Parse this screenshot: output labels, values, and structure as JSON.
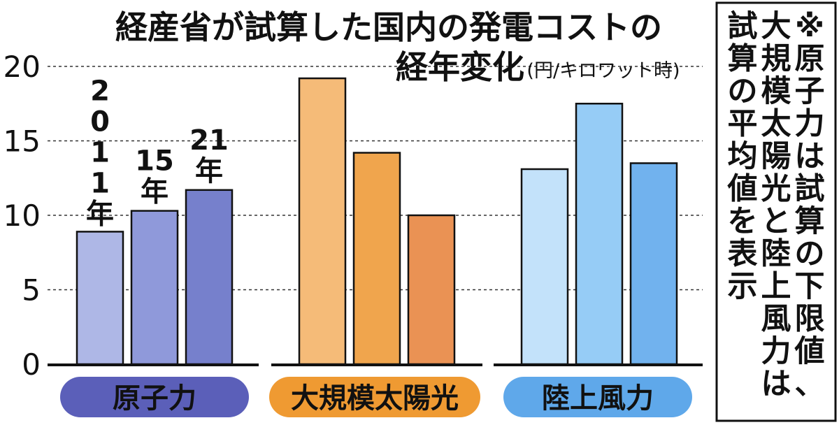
{
  "chart_data": {
    "type": "bar",
    "title_line1": "経産省が試算した国内の発電コストの",
    "title_line2": "経年変化",
    "unit": "(円/キロワット時)",
    "categories": [
      "原子力",
      "大規模太陽光",
      "陸上風力"
    ],
    "series": [
      {
        "name": "2011年",
        "values": [
          8.9,
          19.2,
          13.1
        ]
      },
      {
        "name": "15年",
        "values": [
          10.3,
          14.2,
          17.5
        ]
      },
      {
        "name": "21年",
        "values": [
          11.7,
          10.0,
          13.5
        ]
      }
    ],
    "series_labels": [
      "2011年",
      "15年",
      "21年"
    ],
    "yticks": [
      "0",
      "5",
      "10",
      "15",
      "20"
    ],
    "ylim": [
      0,
      20
    ],
    "grid": true,
    "note": "※原子力は試算の下限値、大規模太陽光と陸上風力は試算の平均値を表示",
    "colors": {
      "原子力": [
        "#aeb7e6",
        "#8f99da",
        "#7680cc"
      ],
      "大規模太陽光": [
        "#f5bb78",
        "#f0a54d",
        "#ea9254"
      ],
      "陸上風力": [
        "#c3e2fa",
        "#96ccf6",
        "#71b2ee"
      ],
      "category_pills": [
        "#5b5fb9",
        "#ef9a32",
        "#5fa8ea"
      ]
    }
  }
}
